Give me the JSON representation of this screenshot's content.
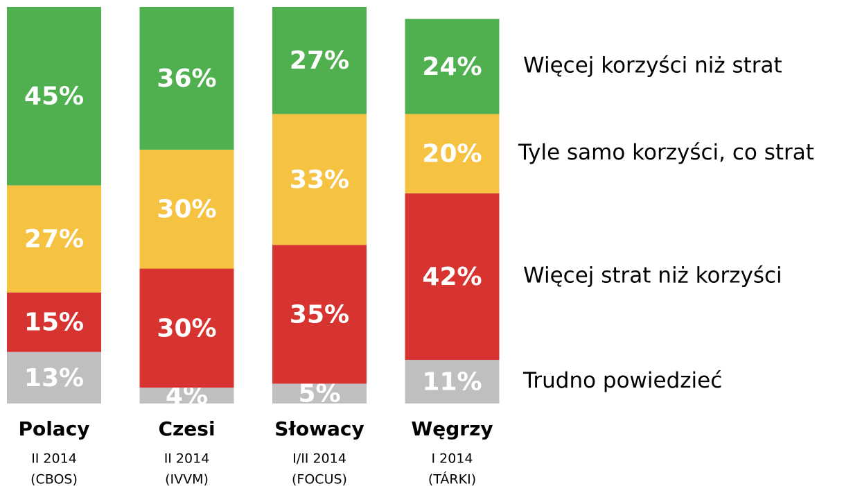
{
  "chart_data": {
    "type": "stacked-bar",
    "categories": [
      "Polacy",
      "Czesi",
      "Słowacy",
      "Węgrzy"
    ],
    "category_details": [
      [
        "II 2014",
        "(CBOS)"
      ],
      [
        "II 2014",
        "(IVVM)"
      ],
      [
        "I/II 2014",
        "(FOCUS)"
      ],
      [
        "I 2014",
        "(TÁRKI)"
      ]
    ],
    "series": [
      {
        "name": "Trudno powiedzieć",
        "color": "#bfbfbf",
        "values": [
          13,
          4,
          5,
          11
        ],
        "value_labels": [
          "13%",
          "4%",
          "5%",
          "11%"
        ]
      },
      {
        "name": "Więcej strat niż korzyści",
        "color": "#d73330",
        "values": [
          15,
          30,
          35,
          42
        ],
        "value_labels": [
          "15%",
          "30%",
          "35%",
          "42%"
        ]
      },
      {
        "name": "Tyle samo korzyści, co strat",
        "color": "#f5c242",
        "values": [
          27,
          30,
          33,
          20
        ],
        "value_labels": [
          "27%",
          "30%",
          "33%",
          "20%"
        ]
      },
      {
        "name": "Więcej korzyści niż strat",
        "color": "#50b050",
        "values": [
          45,
          36,
          27,
          24
        ],
        "value_labels": [
          "45%",
          "36%",
          "27%",
          "24%"
        ]
      }
    ]
  }
}
